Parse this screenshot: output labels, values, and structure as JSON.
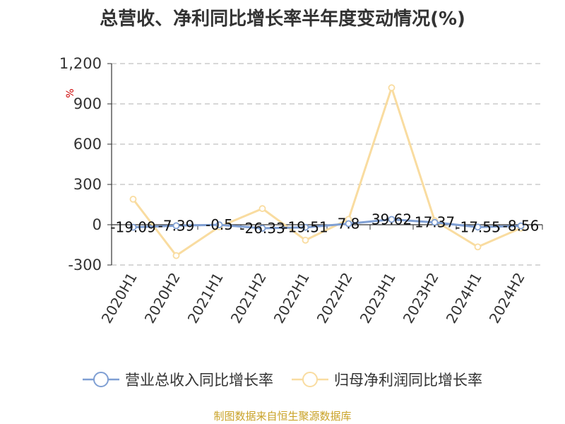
{
  "chart_data": {
    "type": "line",
    "title": "总营收、净利同比增长率半年度变动情况(%)",
    "ylabel": "%",
    "xlabel": "",
    "categories": [
      "2020H1",
      "2020H2",
      "2021H1",
      "2021H2",
      "2022H1",
      "2022H2",
      "2023H1",
      "2023H2",
      "2024H1",
      "2024H2"
    ],
    "ylim": [
      -300,
      1200
    ],
    "yticks": [
      -300,
      0,
      300,
      600,
      900,
      1200
    ],
    "ytick_labels": [
      "-300",
      "0",
      "300",
      "600",
      "900",
      "1,200"
    ],
    "grid": true,
    "legend_position": "bottom",
    "series": [
      {
        "name": "营业总收入同比增长率",
        "color": "#7f9fd3",
        "values": [
          -19.09,
          -7.39,
          -0.5,
          -26.33,
          -19.51,
          7.8,
          39.62,
          17.37,
          -17.55,
          -8.56
        ],
        "labels": [
          "-19.09",
          "-7.39",
          "-0.5",
          "-26.33",
          "-19.51",
          "7.8",
          "39.62",
          "17.37",
          "-17.55",
          "-8.56"
        ]
      },
      {
        "name": "归母净利润同比增长率",
        "color": "#f9dca0",
        "values": [
          190,
          -230,
          -15,
          120,
          -115,
          40,
          1020,
          30,
          -165,
          -25
        ]
      }
    ]
  },
  "source_text": "制图数据来自恒生聚源数据库"
}
